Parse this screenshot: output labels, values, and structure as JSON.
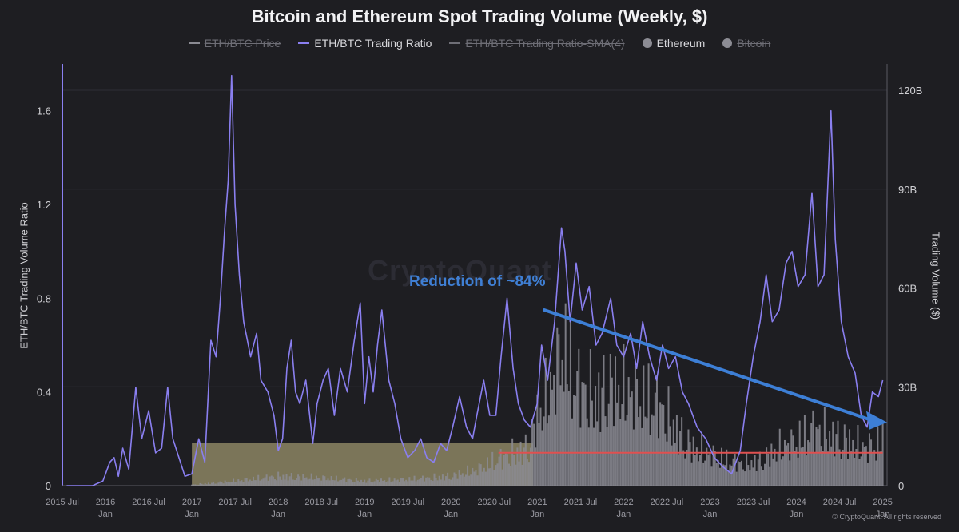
{
  "chart_data": {
    "type": "line",
    "title": "Bitcoin and Ethereum Spot Trading Volume (Weekly, $)",
    "legend": [
      {
        "label": "ETH/BTC Price",
        "kind": "line",
        "color": "#8a8a92",
        "active": false
      },
      {
        "label": "ETH/BTC Trading Ratio",
        "kind": "line",
        "color": "#8a7ff0",
        "active": true
      },
      {
        "label": "ETH/BTC Trading Ratio-SMA(4)",
        "kind": "line",
        "color": "#6e6e76",
        "active": false
      },
      {
        "label": "Ethereum",
        "kind": "dot",
        "color": "#8c8c94",
        "active": true
      },
      {
        "label": "Bitcoin",
        "kind": "dot",
        "color": "#8c8c94",
        "active": false
      }
    ],
    "ylabel_left": "ETH/BTC Trading Volume Ratio",
    "ylabel_right": "Trading Volume ($)",
    "ylim_left": [
      0,
      1.8
    ],
    "ylim_right": [
      0,
      128
    ],
    "yticks_left": [
      {
        "v": 0,
        "label": "0"
      },
      {
        "v": 0.4,
        "label": "0.4"
      },
      {
        "v": 0.8,
        "label": "0.8"
      },
      {
        "v": 1.2,
        "label": "1.2"
      },
      {
        "v": 1.6,
        "label": "1.6"
      }
    ],
    "yticks_right": [
      {
        "v": 0,
        "label": "0"
      },
      {
        "v": 30,
        "label": "30B"
      },
      {
        "v": 60,
        "label": "60B"
      },
      {
        "v": 90,
        "label": "90B"
      },
      {
        "v": 120,
        "label": "120B"
      }
    ],
    "xlim": [
      2015.5,
      2025.05
    ],
    "xticks": [
      {
        "v": 2015.5,
        "l1": "2015 Jul",
        "l2": ""
      },
      {
        "v": 2016.0,
        "l1": "2016",
        "l2": "Jan"
      },
      {
        "v": 2016.5,
        "l1": "2016 Jul",
        "l2": ""
      },
      {
        "v": 2017.0,
        "l1": "2017",
        "l2": "Jan"
      },
      {
        "v": 2017.5,
        "l1": "2017 Jul",
        "l2": ""
      },
      {
        "v": 2018.0,
        "l1": "2018",
        "l2": "Jan"
      },
      {
        "v": 2018.5,
        "l1": "2018 Jul",
        "l2": ""
      },
      {
        "v": 2019.0,
        "l1": "2019",
        "l2": "Jan"
      },
      {
        "v": 2019.5,
        "l1": "2019 Jul",
        "l2": ""
      },
      {
        "v": 2020.0,
        "l1": "2020",
        "l2": "Jan"
      },
      {
        "v": 2020.5,
        "l1": "2020 Jul",
        "l2": ""
      },
      {
        "v": 2021.0,
        "l1": "2021",
        "l2": "Jan"
      },
      {
        "v": 2021.5,
        "l1": "2021 Jul",
        "l2": ""
      },
      {
        "v": 2022.0,
        "l1": "2022",
        "l2": "Jan"
      },
      {
        "v": 2022.5,
        "l1": "2022 Jul",
        "l2": ""
      },
      {
        "v": 2023.0,
        "l1": "2023",
        "l2": "Jan"
      },
      {
        "v": 2023.5,
        "l1": "2023 Jul",
        "l2": ""
      },
      {
        "v": 2024.0,
        "l1": "2024",
        "l2": "Jan"
      },
      {
        "v": 2024.5,
        "l1": "2024 Jul",
        "l2": ""
      },
      {
        "v": 2025.0,
        "l1": "2025",
        "l2": "Jan"
      }
    ],
    "series": [
      {
        "name": "ETH/BTC Trading Ratio",
        "axis": "left",
        "color": "#8a7ff0",
        "points": [
          [
            2015.55,
            0.0
          ],
          [
            2015.85,
            0.0
          ],
          [
            2015.97,
            0.02
          ],
          [
            2016.05,
            0.1
          ],
          [
            2016.1,
            0.12
          ],
          [
            2016.15,
            0.04
          ],
          [
            2016.2,
            0.16
          ],
          [
            2016.27,
            0.07
          ],
          [
            2016.35,
            0.42
          ],
          [
            2016.42,
            0.2
          ],
          [
            2016.5,
            0.32
          ],
          [
            2016.58,
            0.14
          ],
          [
            2016.65,
            0.16
          ],
          [
            2016.72,
            0.42
          ],
          [
            2016.78,
            0.2
          ],
          [
            2016.85,
            0.12
          ],
          [
            2016.92,
            0.04
          ],
          [
            2017.0,
            0.05
          ],
          [
            2017.08,
            0.2
          ],
          [
            2017.15,
            0.1
          ],
          [
            2017.22,
            0.62
          ],
          [
            2017.28,
            0.55
          ],
          [
            2017.33,
            0.8
          ],
          [
            2017.38,
            1.1
          ],
          [
            2017.42,
            1.3
          ],
          [
            2017.46,
            1.75
          ],
          [
            2017.5,
            1.2
          ],
          [
            2017.55,
            0.9
          ],
          [
            2017.6,
            0.7
          ],
          [
            2017.68,
            0.55
          ],
          [
            2017.75,
            0.65
          ],
          [
            2017.8,
            0.45
          ],
          [
            2017.88,
            0.4
          ],
          [
            2017.95,
            0.3
          ],
          [
            2018.0,
            0.15
          ],
          [
            2018.05,
            0.2
          ],
          [
            2018.1,
            0.5
          ],
          [
            2018.15,
            0.62
          ],
          [
            2018.2,
            0.4
          ],
          [
            2018.25,
            0.35
          ],
          [
            2018.32,
            0.45
          ],
          [
            2018.4,
            0.18
          ],
          [
            2018.45,
            0.35
          ],
          [
            2018.52,
            0.45
          ],
          [
            2018.58,
            0.5
          ],
          [
            2018.65,
            0.3
          ],
          [
            2018.72,
            0.5
          ],
          [
            2018.8,
            0.4
          ],
          [
            2018.88,
            0.62
          ],
          [
            2018.95,
            0.78
          ],
          [
            2019.0,
            0.35
          ],
          [
            2019.05,
            0.55
          ],
          [
            2019.1,
            0.4
          ],
          [
            2019.15,
            0.6
          ],
          [
            2019.2,
            0.75
          ],
          [
            2019.28,
            0.45
          ],
          [
            2019.35,
            0.35
          ],
          [
            2019.42,
            0.2
          ],
          [
            2019.5,
            0.12
          ],
          [
            2019.58,
            0.15
          ],
          [
            2019.65,
            0.2
          ],
          [
            2019.72,
            0.12
          ],
          [
            2019.8,
            0.1
          ],
          [
            2019.88,
            0.18
          ],
          [
            2019.95,
            0.15
          ],
          [
            2020.02,
            0.25
          ],
          [
            2020.1,
            0.38
          ],
          [
            2020.18,
            0.25
          ],
          [
            2020.25,
            0.2
          ],
          [
            2020.3,
            0.3
          ],
          [
            2020.38,
            0.45
          ],
          [
            2020.45,
            0.3
          ],
          [
            2020.52,
            0.3
          ],
          [
            2020.58,
            0.55
          ],
          [
            2020.65,
            0.8
          ],
          [
            2020.72,
            0.5
          ],
          [
            2020.78,
            0.35
          ],
          [
            2020.85,
            0.28
          ],
          [
            2020.92,
            0.25
          ],
          [
            2021.0,
            0.35
          ],
          [
            2021.05,
            0.6
          ],
          [
            2021.12,
            0.45
          ],
          [
            2021.2,
            0.7
          ],
          [
            2021.28,
            1.1
          ],
          [
            2021.32,
            1.0
          ],
          [
            2021.38,
            0.7
          ],
          [
            2021.45,
            0.95
          ],
          [
            2021.52,
            0.75
          ],
          [
            2021.6,
            0.85
          ],
          [
            2021.68,
            0.6
          ],
          [
            2021.75,
            0.65
          ],
          [
            2021.85,
            0.8
          ],
          [
            2021.92,
            0.6
          ],
          [
            2022.0,
            0.55
          ],
          [
            2022.08,
            0.65
          ],
          [
            2022.15,
            0.5
          ],
          [
            2022.22,
            0.7
          ],
          [
            2022.3,
            0.55
          ],
          [
            2022.38,
            0.45
          ],
          [
            2022.45,
            0.6
          ],
          [
            2022.52,
            0.5
          ],
          [
            2022.6,
            0.55
          ],
          [
            2022.68,
            0.4
          ],
          [
            2022.75,
            0.35
          ],
          [
            2022.85,
            0.25
          ],
          [
            2022.95,
            0.2
          ],
          [
            2023.05,
            0.12
          ],
          [
            2023.15,
            0.08
          ],
          [
            2023.25,
            0.05
          ],
          [
            2023.35,
            0.15
          ],
          [
            2023.42,
            0.35
          ],
          [
            2023.5,
            0.55
          ],
          [
            2023.58,
            0.7
          ],
          [
            2023.65,
            0.9
          ],
          [
            2023.72,
            0.7
          ],
          [
            2023.8,
            0.75
          ],
          [
            2023.88,
            0.95
          ],
          [
            2023.95,
            1.0
          ],
          [
            2024.02,
            0.85
          ],
          [
            2024.1,
            0.9
          ],
          [
            2024.18,
            1.25
          ],
          [
            2024.25,
            0.85
          ],
          [
            2024.32,
            0.9
          ],
          [
            2024.4,
            1.6
          ],
          [
            2024.45,
            1.05
          ],
          [
            2024.52,
            0.7
          ],
          [
            2024.6,
            0.55
          ],
          [
            2024.68,
            0.48
          ],
          [
            2024.75,
            0.3
          ],
          [
            2024.82,
            0.25
          ],
          [
            2024.88,
            0.4
          ],
          [
            2024.95,
            0.38
          ],
          [
            2025.0,
            0.45
          ]
        ]
      },
      {
        "name": "Ethereum",
        "axis": "right",
        "kind": "bars",
        "color": "#8c8c94",
        "points": [
          [
            2017.0,
            0.3
          ],
          [
            2017.5,
            1.5
          ],
          [
            2018.0,
            3
          ],
          [
            2018.5,
            2.5
          ],
          [
            2019.0,
            1.5
          ],
          [
            2019.5,
            2
          ],
          [
            2020.0,
            3
          ],
          [
            2020.3,
            5
          ],
          [
            2020.6,
            9
          ],
          [
            2020.9,
            12
          ],
          [
            2021.0,
            22
          ],
          [
            2021.15,
            30
          ],
          [
            2021.3,
            45
          ],
          [
            2021.4,
            35
          ],
          [
            2021.55,
            30
          ],
          [
            2021.7,
            28
          ],
          [
            2021.85,
            32
          ],
          [
            2022.0,
            30
          ],
          [
            2022.2,
            28
          ],
          [
            2022.4,
            26
          ],
          [
            2022.6,
            18
          ],
          [
            2022.8,
            12
          ],
          [
            2023.0,
            10
          ],
          [
            2023.2,
            8
          ],
          [
            2023.4,
            7
          ],
          [
            2023.6,
            8
          ],
          [
            2023.8,
            12
          ],
          [
            2024.0,
            14
          ],
          [
            2024.2,
            18
          ],
          [
            2024.4,
            16
          ],
          [
            2024.6,
            14
          ],
          [
            2024.8,
            12
          ],
          [
            2025.0,
            14
          ]
        ]
      }
    ],
    "annotation": "Reduction of ~84%",
    "watermark": "CryptoQuant",
    "highlight_box": {
      "x": [
        2017.0,
        2020.95
      ],
      "y_right": [
        0,
        13
      ]
    },
    "reference_line": {
      "x": [
        2020.55,
        2025.0
      ],
      "y_right": 10,
      "color": "#e05050"
    },
    "trend_arrow": {
      "from": [
        2021.08,
        0.75
      ],
      "to": [
        2025.05,
        0.27
      ],
      "color": "#3d7fd6"
    },
    "grid": true
  },
  "credit": "© CryptoQuant. All rights reserved"
}
